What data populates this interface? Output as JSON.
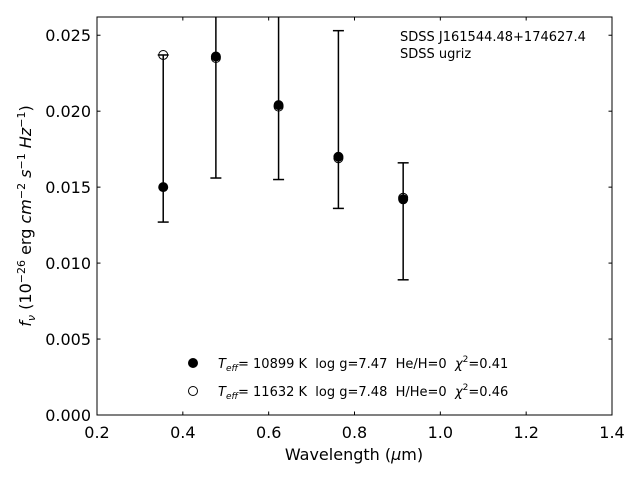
{
  "chart_data": {
    "type": "scatter",
    "xlabel": "Wavelength (μm)",
    "ylabel": "f_ν (10^-26 erg cm^-2 s^-1 Hz^-1)",
    "xlim": [
      0.2,
      1.4
    ],
    "ylim": [
      0.0,
      0.0262
    ],
    "xticks": [
      0.2,
      0.4,
      0.6,
      0.8,
      1.0,
      1.2,
      1.4
    ],
    "xtick_labels": [
      "0.2",
      "0.4",
      "0.6",
      "0.8",
      "1.0",
      "1.2",
      "1.4"
    ],
    "yticks": [
      0.0,
      0.005,
      0.01,
      0.015,
      0.02,
      0.025
    ],
    "ytick_labels": [
      "0.000",
      "0.005",
      "0.010",
      "0.015",
      "0.020",
      "0.025"
    ],
    "annotation": [
      "SDSS J161544.48+174627.4",
      "SDSS ugriz"
    ],
    "observed": {
      "x": [
        0.3543,
        0.477,
        0.6231,
        0.7625,
        0.9134
      ],
      "y": [
        0.0237,
        0.0236,
        0.0205,
        0.0169,
        0.0143
      ],
      "yerr_low": [
        0.0127,
        0.0156,
        0.0155,
        0.0136,
        0.0089
      ],
      "yerr_high": [
        0.0237,
        0.0262,
        0.0262,
        0.0253,
        0.0166
      ]
    },
    "series": [
      {
        "name": "T_eff= 10899 K  log g=7.47  He/H=0  χ²=0.41",
        "marker": "filled-circle",
        "x": [
          0.3543,
          0.477,
          0.6231,
          0.7625,
          0.9134
        ],
        "y": [
          0.015,
          0.0236,
          0.0204,
          0.017,
          0.0142
        ]
      },
      {
        "name": "T_eff= 11632 K  log g=7.48  H/He=0  χ²=0.46",
        "marker": "open-circle",
        "x": [
          0.3543,
          0.477,
          0.6231,
          0.7625,
          0.9134
        ],
        "y": [
          0.0237,
          0.0235,
          0.0203,
          0.0169,
          0.0143
        ]
      }
    ],
    "legend": [
      {
        "teff_label": "T",
        "teff_sub": "eff",
        "text": "= 10899 K  log g=7.47  He/H=0  ",
        "chi_label": "χ",
        "chi_sup": "2",
        "chi_val": "=0.41"
      },
      {
        "teff_label": "T",
        "teff_sub": "eff",
        "text": "= 11632 K  log g=7.48  H/He=0  ",
        "chi_label": "χ",
        "chi_sup": "2",
        "chi_val": "=0.46"
      }
    ],
    "legend_position": "lower-center",
    "grid": false,
    "colors": {
      "marker": "#000000",
      "axes": "#000000",
      "background": "#ffffff"
    }
  }
}
